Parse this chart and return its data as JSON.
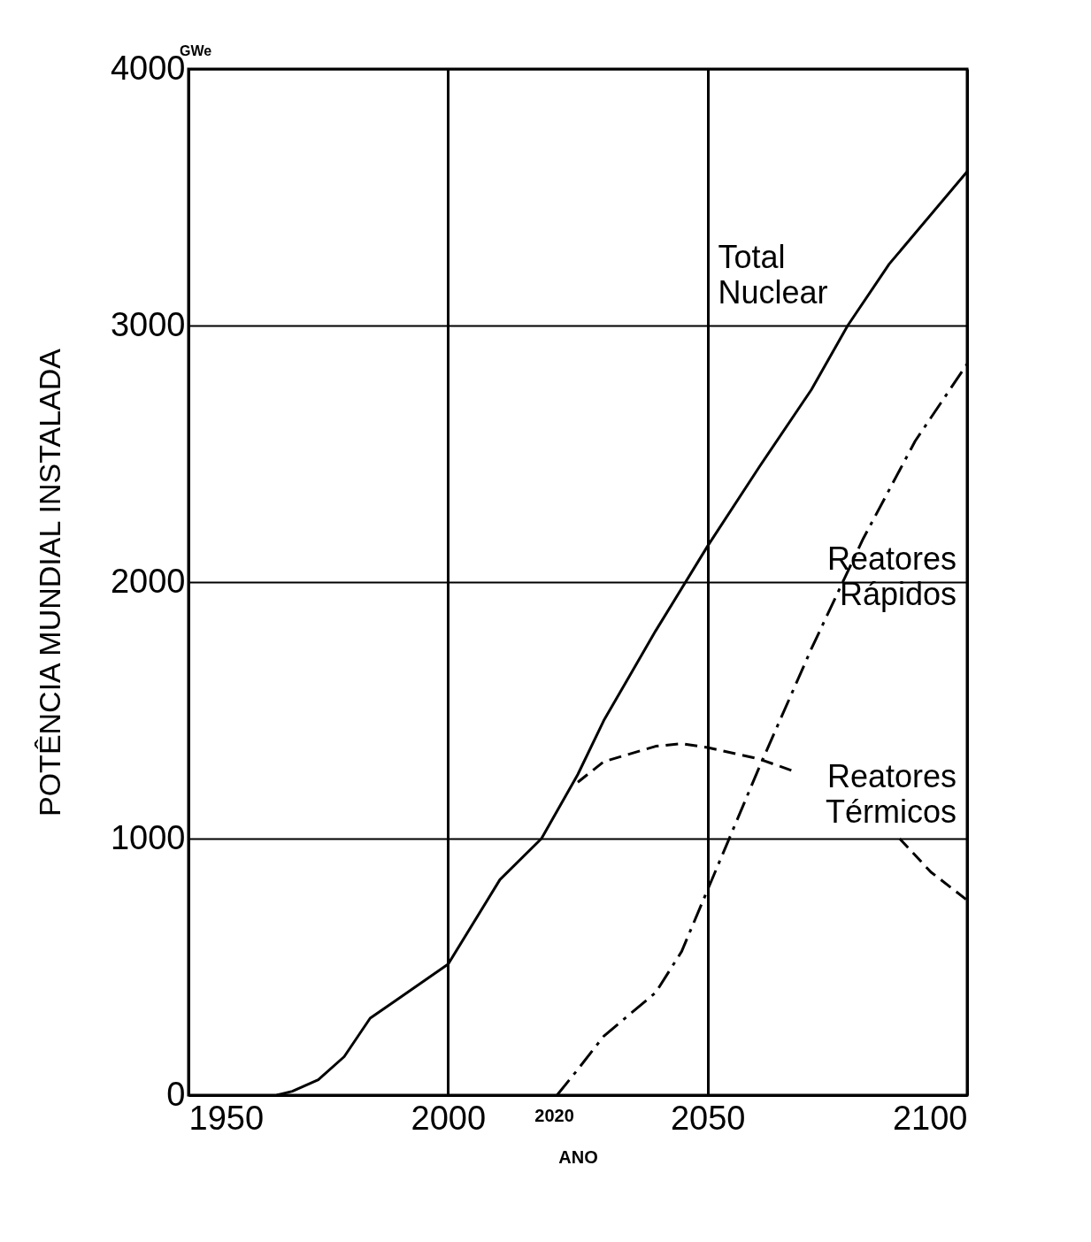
{
  "chart_data": {
    "type": "line",
    "xlabel": "ANO",
    "ylabel": "POTÊNCIA MUNDIAL INSTALADA",
    "xlim": [
      1950,
      2100
    ],
    "xticks": [
      1950,
      2000,
      2050,
      2100
    ],
    "ylim": [
      0,
      4000
    ],
    "yticks": [
      0,
      1000,
      2000,
      3000,
      4000
    ],
    "grid": true,
    "marker": "none",
    "annotations": [
      "GWe",
      "2020"
    ],
    "series": [
      {
        "name": "Total Nuclear",
        "color": "#000000",
        "line_style": "solid",
        "x": [
          1967,
          1970,
          1975,
          1980,
          1985,
          1990,
          2000,
          2010,
          2018,
          2025,
          2030,
          2040,
          2050,
          2060,
          2070,
          2077,
          2085,
          2100
        ],
        "values": [
          0,
          15,
          60,
          150,
          300,
          370,
          510,
          840,
          1000,
          1250,
          1460,
          1810,
          2140,
          2450,
          2750,
          3000,
          3240,
          3600
        ]
      },
      {
        "name": "Reatores Térmicos",
        "color": "#000000",
        "line_style": "dashed",
        "x": [
          2025,
          2030,
          2040,
          2045,
          2050,
          2060,
          2067,
          2077,
          2087,
          2093,
          2100
        ],
        "values": [
          1220,
          1300,
          1360,
          1370,
          1355,
          1310,
          1260,
          null,
          1000,
          870,
          760
        ]
      },
      {
        "name": "Reatores Rápidos",
        "color": "#000000",
        "line_style": "dashdot",
        "x": [
          2021,
          2025,
          2030,
          2040,
          2045,
          2050,
          2055,
          2060,
          2070,
          2080,
          2090,
          2100
        ],
        "values": [
          0,
          100,
          230,
          400,
          560,
          800,
          1040,
          1280,
          1740,
          2170,
          2550,
          2850
        ]
      }
    ]
  }
}
